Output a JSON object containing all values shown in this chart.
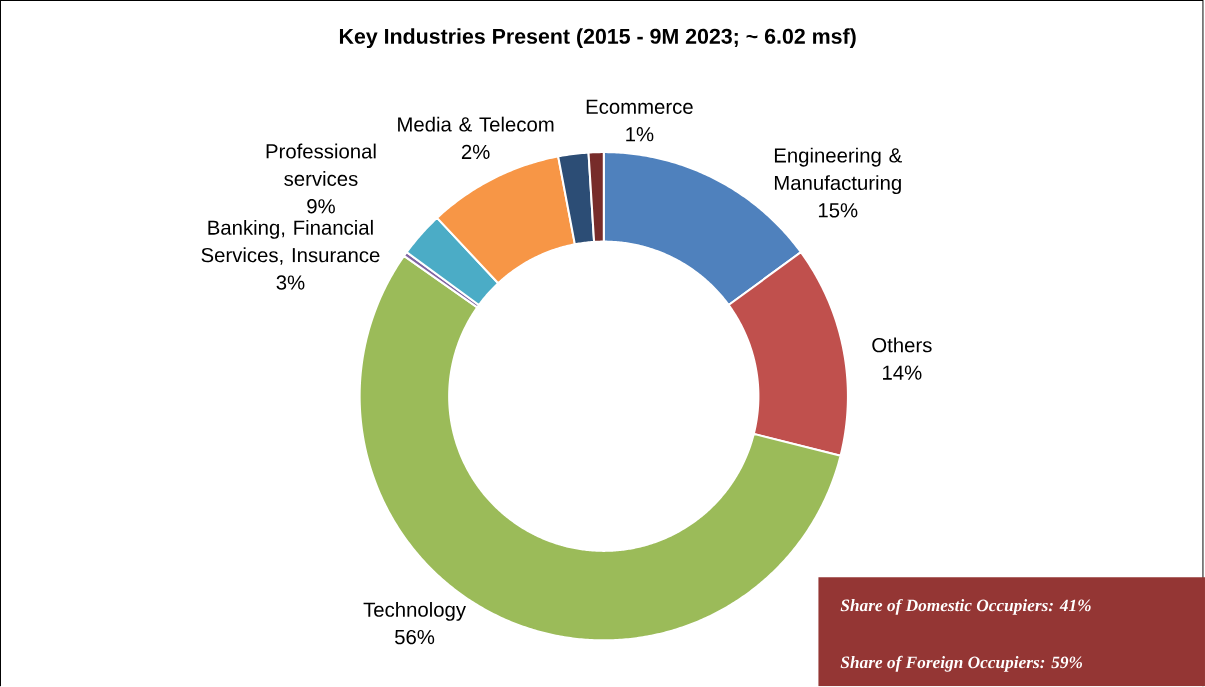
{
  "chart_data": {
    "type": "donut",
    "title": "Key Industries Present (2015 - 9M 2023; ~ 6.02 msf)",
    "categories": [
      "Engineering & Manufacturing",
      "Others",
      "Technology",
      null,
      "Banking, Financial Services, Insurance",
      "Professional services",
      "Media & Telecom",
      "Ecommerce"
    ],
    "values": [
      15,
      14,
      56,
      0.3,
      3,
      9,
      2,
      1
    ],
    "colors": [
      "#4f81bd",
      "#c0504d",
      "#9bbb59",
      "#8064a2",
      "#4bacc6",
      "#f79646",
      "#2c4d75",
      "#772c2a"
    ],
    "value_labels": [
      "15%",
      "14%",
      "56%",
      null,
      "3%",
      "9%",
      "2%",
      "1%"
    ],
    "annotations": [
      "Share of Domestic Occupiers: 41%",
      "Share of Foreign Occupiers: 59%"
    ]
  }
}
